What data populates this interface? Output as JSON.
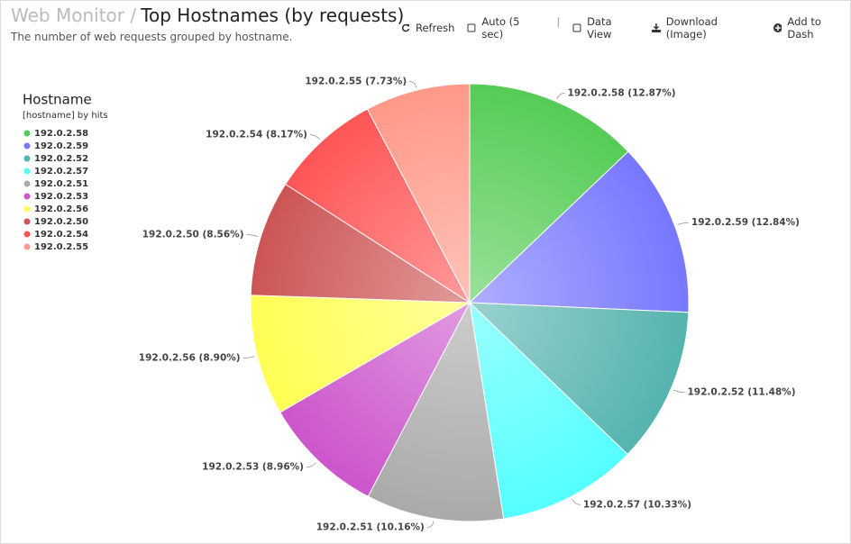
{
  "header": {
    "breadcrumb": "Web Monitor /",
    "title": "Top Hostnames (by requests)",
    "subtitle": "The number of web requests grouped by hostname."
  },
  "toolbar": [
    "Refresh",
    "Auto (5 sec)",
    "Data View",
    "Download (Image)",
    "Add to Dash"
  ],
  "chart_data": {
    "type": "pie",
    "legend_title": "Hostname",
    "legend_subtitle": "[hostname] by hits",
    "legend": "top-left",
    "categories": [
      "192.0.2.58",
      "192.0.2.59",
      "192.0.2.52",
      "192.0.2.57",
      "192.0.2.51",
      "192.0.2.53",
      "192.0.2.56",
      "192.0.2.50",
      "192.0.2.54",
      "192.0.2.55"
    ],
    "values": [
      12.87,
      12.84,
      11.48,
      10.33,
      10.16,
      8.96,
      8.9,
      8.56,
      8.17,
      7.73
    ],
    "value_labels": [
      "192.0.2.58 (12.87%)",
      "192.0.2.59 (12.84%)",
      "192.0.2.52 (11.48%)",
      "192.0.2.57 (10.33%)",
      "192.0.2.51 (10.16%)",
      "192.0.2.53 (8.96%)",
      "192.0.2.56 (8.90%)",
      "192.0.2.50 (8.56%)",
      "192.0.2.54 (8.17%)",
      "192.0.2.55 (7.73%)"
    ],
    "colors": [
      "#55cc55",
      "#7777ff",
      "#55b3ae",
      "#55ffff",
      "#aaaaaa",
      "#cc55cc",
      "#ffff55",
      "#cc5555",
      "#ff5555",
      "#ff9988"
    ]
  }
}
